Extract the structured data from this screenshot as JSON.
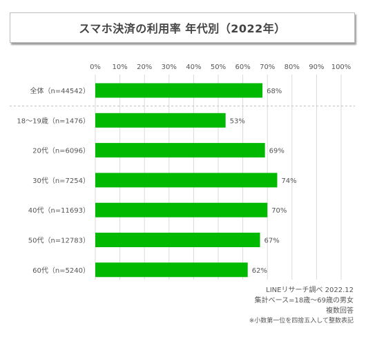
{
  "title": "スマホ決済の利用率 年代別（2022年）",
  "colors": {
    "bar": "#00b900",
    "grid": "#d9d9d9",
    "separator": "#bfbfbf"
  },
  "notes": {
    "line1": "LINEリサーチ調べ 2022.12",
    "line2": "集計ベース=18歳〜69歳の男女",
    "line3": "複数回答",
    "line4": "※小数第一位を四捨五入して整数表記"
  },
  "chart_data": {
    "type": "bar",
    "orientation": "horizontal",
    "title": "スマホ決済の利用率 年代別（2022年）",
    "xlim": [
      0,
      100
    ],
    "x_ticks": [
      "0%",
      "10%",
      "20%",
      "30%",
      "40%",
      "50%",
      "60%",
      "70%",
      "80%",
      "90%",
      "100%"
    ],
    "grid": true,
    "categories": [
      "全体（n=44542）",
      "18〜19歳（n=1476）",
      "20代（n=6096）",
      "30代（n=7254）",
      "40代（n=11693）",
      "50代（n=12783）",
      "60代（n=5240）"
    ],
    "values": [
      68,
      53,
      69,
      74,
      70,
      67,
      62
    ],
    "value_labels": [
      "68%",
      "53%",
      "69%",
      "74%",
      "70%",
      "67%",
      "62%"
    ]
  }
}
